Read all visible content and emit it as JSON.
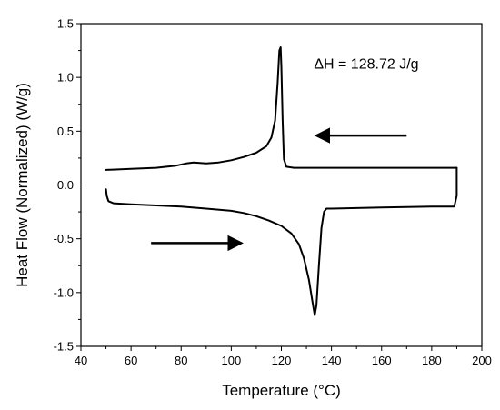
{
  "chart_data": {
    "type": "line",
    "xlabel": "Temperature (°C)",
    "ylabel": "Heat Flow (Normalized) (W/g)",
    "xlim": [
      40,
      200
    ],
    "ylim": [
      -1.5,
      1.5
    ],
    "xticks": [
      40,
      60,
      80,
      100,
      120,
      140,
      160,
      180,
      200
    ],
    "yticks": [
      -1.5,
      -1.0,
      -0.5,
      0.0,
      0.5,
      1.0,
      1.5
    ],
    "xtick_labels": [
      "40",
      "60",
      "80",
      "100",
      "120",
      "140",
      "160",
      "180",
      "200"
    ],
    "ytick_labels": [
      "-1.5",
      "-1.0",
      "-0.5",
      "0.0",
      "0.5",
      "1.0",
      "1.5"
    ],
    "grid": false,
    "annotation": "ΔH = 128.72 J/g",
    "series": [
      {
        "segment": "cooling",
        "points": [
          [
            190,
            0.16
          ],
          [
            180,
            0.16
          ],
          [
            160,
            0.16
          ],
          [
            140,
            0.16
          ],
          [
            125,
            0.16
          ],
          [
            122,
            0.17
          ],
          [
            121,
            0.24
          ],
          [
            120.5,
            0.6
          ],
          [
            120,
            1.1
          ],
          [
            119.7,
            1.28
          ],
          [
            119.2,
            1.25
          ],
          [
            118.5,
            0.95
          ],
          [
            117.5,
            0.6
          ],
          [
            116,
            0.44
          ],
          [
            114,
            0.36
          ],
          [
            110,
            0.3
          ],
          [
            105,
            0.26
          ],
          [
            100,
            0.23
          ],
          [
            95,
            0.21
          ],
          [
            90,
            0.2
          ],
          [
            85,
            0.21
          ],
          [
            82,
            0.2
          ],
          [
            78,
            0.18
          ],
          [
            70,
            0.16
          ],
          [
            60,
            0.15
          ],
          [
            50,
            0.14
          ]
        ]
      },
      {
        "segment": "heating",
        "points": [
          [
            50,
            -0.04
          ],
          [
            50.3,
            -0.1
          ],
          [
            51,
            -0.15
          ],
          [
            53,
            -0.17
          ],
          [
            60,
            -0.18
          ],
          [
            70,
            -0.19
          ],
          [
            80,
            -0.2
          ],
          [
            90,
            -0.22
          ],
          [
            100,
            -0.24
          ],
          [
            105,
            -0.26
          ],
          [
            110,
            -0.29
          ],
          [
            115,
            -0.33
          ],
          [
            120,
            -0.38
          ],
          [
            124,
            -0.45
          ],
          [
            127,
            -0.55
          ],
          [
            129,
            -0.68
          ],
          [
            131,
            -0.88
          ],
          [
            132.5,
            -1.1
          ],
          [
            133.3,
            -1.21
          ],
          [
            134,
            -1.12
          ],
          [
            135,
            -0.75
          ],
          [
            136,
            -0.4
          ],
          [
            137,
            -0.25
          ],
          [
            138,
            -0.22
          ],
          [
            140,
            -0.22
          ],
          [
            160,
            -0.21
          ],
          [
            180,
            -0.2
          ],
          [
            189,
            -0.2
          ],
          [
            190,
            -0.1
          ],
          [
            190,
            0.05
          ],
          [
            190,
            0.16
          ]
        ]
      }
    ],
    "arrows": [
      {
        "from": [
          170,
          0.46
        ],
        "to": [
          134,
          0.46
        ],
        "direction": "left"
      },
      {
        "from": [
          68,
          -0.54
        ],
        "to": [
          104,
          -0.54
        ],
        "direction": "right"
      }
    ]
  }
}
